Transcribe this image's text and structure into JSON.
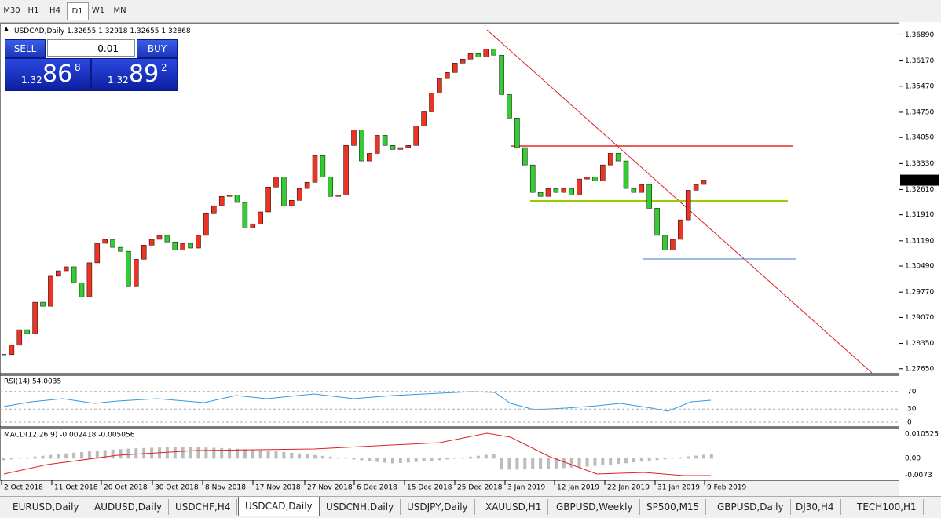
{
  "toolbar": {
    "timeframes": [
      "M30",
      "H1",
      "H4",
      "D1",
      "W1",
      "MN"
    ],
    "active": "D1"
  },
  "header": {
    "symbol": "USDCAD,Daily",
    "open": 1.32655,
    "high": 1.32918,
    "low": 1.32655,
    "close": 1.32868
  },
  "trade_panel": {
    "sell": "SELL",
    "buy": "BUY",
    "lot": "0.01",
    "bid": {
      "big": "1.32",
      "pips": "86",
      "point": "8"
    },
    "ask": {
      "big": "1.32",
      "pips": "89",
      "point": "2"
    }
  },
  "price_chart": {
    "ylim": [
      1.2758,
      1.3716
    ],
    "yticks": [
      {
        "value": 1.3689,
        "label": "1.36890"
      },
      {
        "value": 1.3617,
        "label": "1.36170"
      },
      {
        "value": 1.3547,
        "label": "1.35470"
      },
      {
        "value": 1.3475,
        "label": "1.34750"
      },
      {
        "value": 1.3405,
        "label": "1.34050"
      },
      {
        "value": 1.3333,
        "label": "1.33330"
      },
      {
        "value": 1.3261,
        "label": "1.32610"
      },
      {
        "value": 1.3191,
        "label": "1.31910"
      },
      {
        "value": 1.3119,
        "label": "1.31190"
      },
      {
        "value": 1.3049,
        "label": "1.30490"
      },
      {
        "value": 1.2977,
        "label": "1.29770"
      },
      {
        "value": 1.2907,
        "label": "1.29070"
      },
      {
        "value": 1.2835,
        "label": "1.28350"
      },
      {
        "value": 1.2765,
        "label": "1.27650"
      }
    ],
    "up_color": "#ee3322",
    "down_color": "#33cc33",
    "closes": [
      1.2804,
      1.283,
      1.2873,
      1.2862,
      1.2949,
      1.2938,
      1.3021,
      1.3036,
      1.3047,
      1.3003,
      1.2964,
      1.3058,
      1.3112,
      1.3123,
      1.3101,
      1.309,
      1.2992,
      1.3068,
      1.3107,
      1.3123,
      1.3134,
      1.3116,
      1.3094,
      1.3112,
      1.3099,
      1.3134,
      1.3194,
      1.3216,
      1.3242,
      1.3246,
      1.3225,
      1.3155,
      1.3166,
      1.3199,
      1.3268,
      1.3296,
      1.3216,
      1.3231,
      1.3264,
      1.3281,
      1.3355,
      1.3296,
      1.3242,
      1.3246,
      1.3383,
      1.3426,
      1.334,
      1.3361,
      1.3411,
      1.3383,
      1.3372,
      1.3377,
      1.3383,
      1.3437,
      1.3476,
      1.3528,
      1.3568,
      1.3585,
      1.3611,
      1.3622,
      1.3637,
      1.3628,
      1.365,
      1.3633,
      1.3524,
      1.3459,
      1.3377,
      1.3329,
      1.3253,
      1.3242,
      1.3264,
      1.3253,
      1.3264,
      1.3246,
      1.329,
      1.3296,
      1.3285,
      1.3329,
      1.3361,
      1.334,
      1.3264,
      1.3253,
      1.3275,
      1.3209,
      1.3134,
      1.3094,
      1.3123,
      1.3177,
      1.3259,
      1.3275,
      1.3287
    ]
  },
  "dates": [
    "2 Oct 2018",
    "11 Oct 2018",
    "20 Oct 2018",
    "30 Oct 2018",
    "8 Nov 2018",
    "17 Nov 2018",
    "27 Nov 2018",
    "6 Dec 2018",
    "15 Dec 2018",
    "25 Dec 2018",
    "3 Jan 2019",
    "12 Jan 2019",
    "22 Jan 2019",
    "31 Jan 2019",
    "9 Feb 2019"
  ],
  "rsi": {
    "label": "RSI(14) 54.0035",
    "ylim": [
      0,
      100
    ],
    "yticks": [
      70,
      30,
      0
    ]
  },
  "macd": {
    "label": "MACD(12,26,9) -0.002418 -0.005056",
    "ylim": [
      -0.0092,
      0.0118
    ],
    "yticks": [
      0.010525,
      {
        "value": 0,
        "label": "0.00"
      },
      -0.0073
    ]
  },
  "tabs": [
    "EURUSD,Daily",
    "AUDUSD,Daily",
    "USDCHF,H4",
    "USDCAD,Daily",
    "USDCNH,Daily",
    "USDJPY,Daily",
    "XAUUSD,H1",
    "GBPUSD,Weekly",
    "SP500,M15",
    "GBPUSD,Daily",
    "DJ30,H4",
    "TECH100,H1"
  ],
  "active_tab": "USDCAD,Daily"
}
